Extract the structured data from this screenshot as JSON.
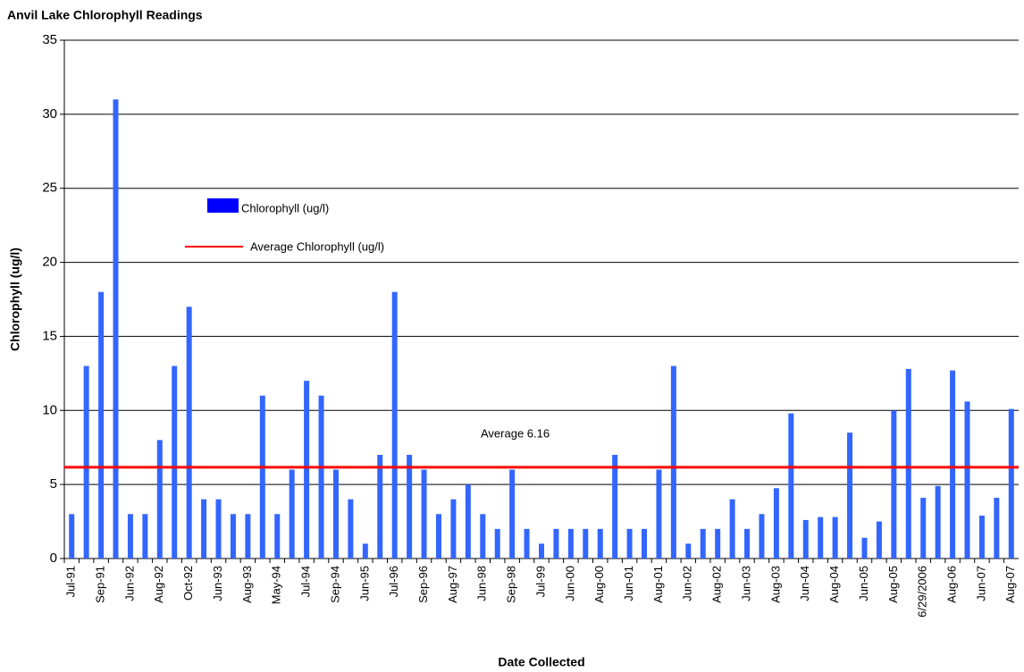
{
  "chart_data": {
    "type": "bar",
    "title": "Anvil Lake Chlorophyll Readings",
    "x_label": "Date Collected",
    "y_label": "Chlorophyll (ug/l)",
    "categories": [
      "Jul-91",
      null,
      "Sep-91",
      null,
      "Jun-92",
      null,
      "Aug-92",
      null,
      "Oct-92",
      null,
      "Jun-93",
      null,
      "Aug-93",
      null,
      "May-94",
      null,
      "Jul-94",
      null,
      "Sep-94",
      null,
      "Jun-95",
      null,
      "Jul-96",
      null,
      "Sep-96",
      null,
      "Aug-97",
      null,
      "Jun-98",
      null,
      "Sep-98",
      null,
      "Jul-99",
      null,
      "Jun-00",
      null,
      "Aug-00",
      null,
      "Jun-01",
      null,
      "Aug-01",
      null,
      "Jun-02",
      null,
      "Aug-02",
      null,
      "Jun-03",
      null,
      "Aug-03",
      null,
      "Jun-04",
      null,
      "Aug-04",
      null,
      "Jun-05",
      null,
      "Aug-05",
      null,
      "6/29/2006",
      null,
      "Aug-06",
      null,
      "Jun-07",
      null,
      "Aug-07"
    ],
    "series": [
      {
        "name": "Chlorophyll (ug/l)",
        "color": "#3366ff",
        "legend_color": "#0000ff",
        "values": [
          3,
          13,
          18,
          31,
          3,
          3,
          8,
          13,
          17,
          4,
          4,
          3,
          3,
          11,
          3,
          6,
          12,
          11,
          6,
          4,
          1,
          7,
          18,
          7,
          6,
          3,
          4,
          5,
          3,
          2,
          6,
          2,
          1,
          2,
          2,
          2,
          2,
          7,
          2,
          2,
          6,
          13,
          1,
          2,
          2,
          4,
          2,
          3,
          4.75,
          9.8,
          2.6,
          2.8,
          2.8,
          8.5,
          1.4,
          2.5,
          10,
          12.8,
          4.1,
          4.9,
          12.7,
          10.6,
          2.9,
          4.1,
          10.1
        ]
      }
    ],
    "average": {
      "name": "Average Chlorophyll (ug/l)",
      "value": 6.16,
      "color": "#ff0000",
      "annotation": "Average 6.16"
    },
    "ylim": [
      0,
      35
    ],
    "yticks": [
      0,
      5,
      10,
      15,
      20,
      25,
      30,
      35
    ],
    "grid": true
  }
}
